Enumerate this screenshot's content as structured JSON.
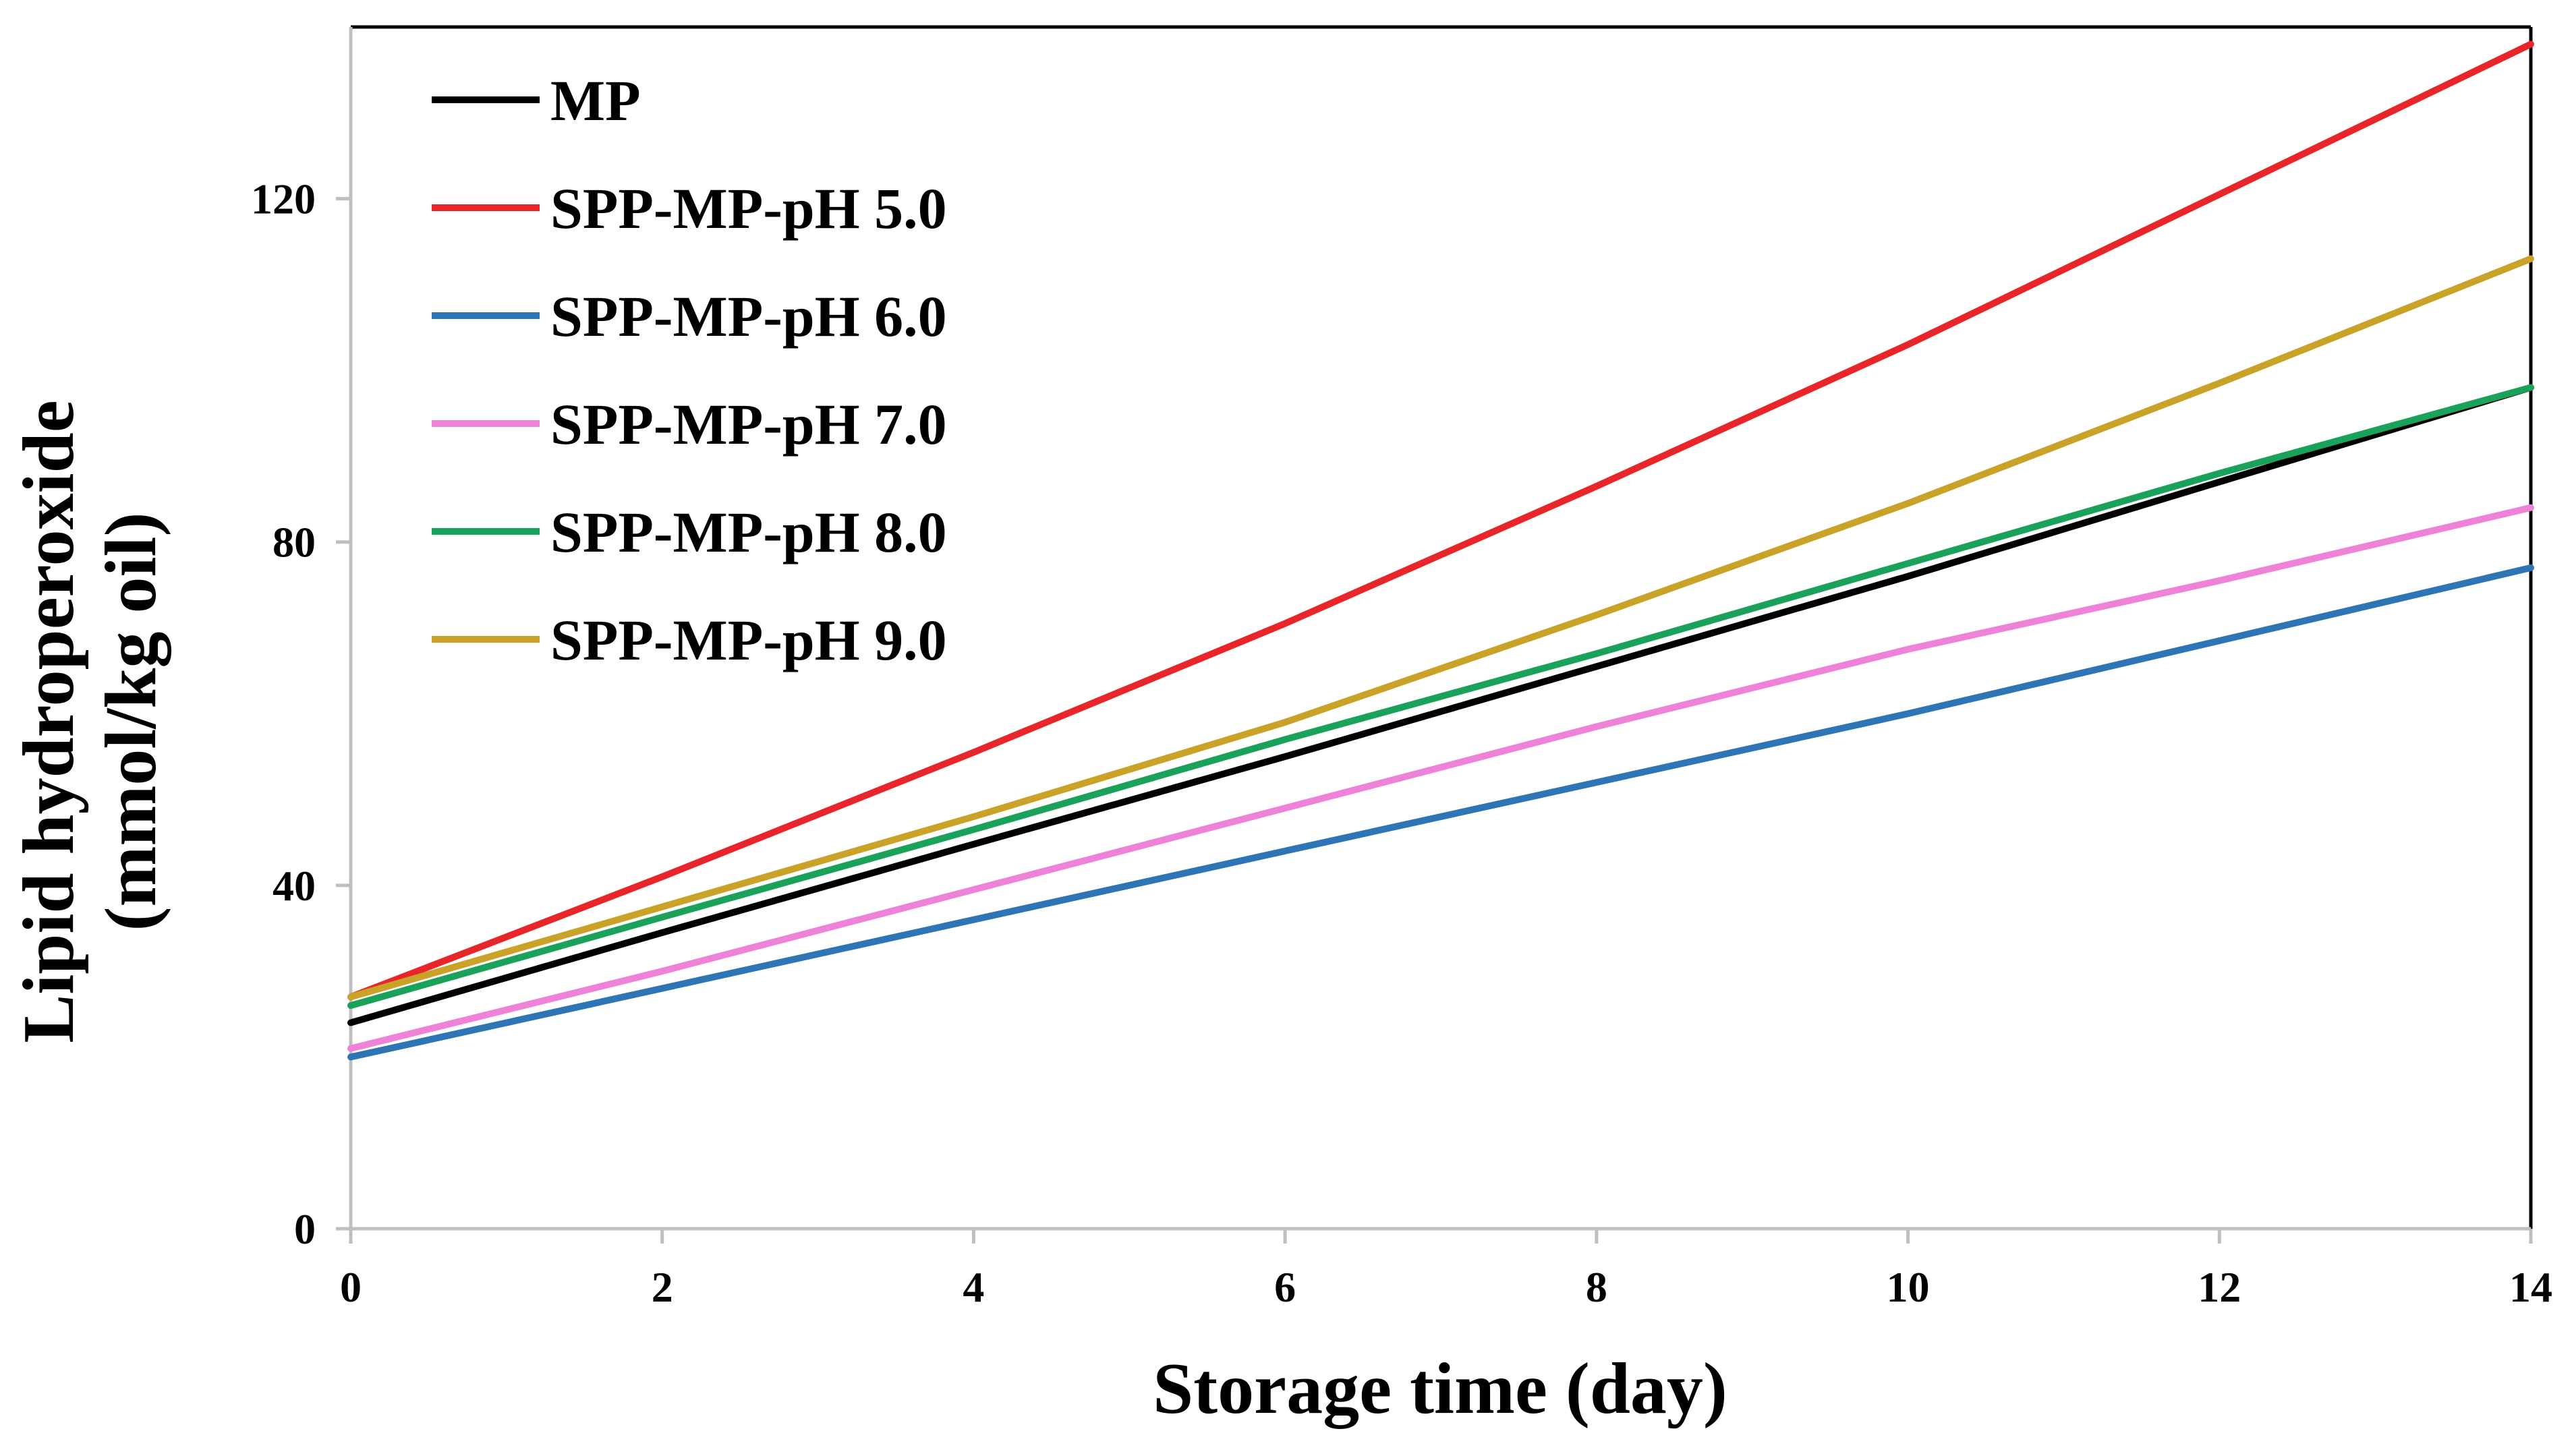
{
  "chart_data": {
    "type": "line",
    "title": "",
    "xlabel": "Storage time (day)",
    "ylabel_line1": "Lipid hydroperoxide",
    "ylabel_line2": "(mmol/kg oil)",
    "xlim": [
      0,
      14
    ],
    "ylim": [
      0,
      140
    ],
    "xticks": [
      0,
      2,
      4,
      6,
      8,
      10,
      12,
      14
    ],
    "yticks": [
      0,
      40,
      80,
      120
    ],
    "grid": false,
    "legend_position": "top-left",
    "x": [
      0,
      2,
      4,
      6,
      8,
      10,
      12,
      14
    ],
    "series": [
      {
        "name": "MP",
        "color": "#000000",
        "values": [
          24,
          34.5,
          44.8,
          55,
          65.5,
          76,
          87,
          98
        ]
      },
      {
        "name": "SPP-MP-pH 5.0",
        "color": "#e8262a",
        "values": [
          27,
          41,
          55.5,
          70.5,
          86.5,
          103,
          120.5,
          138
        ]
      },
      {
        "name": "SPP-MP-pH 6.0",
        "color": "#2e75b6",
        "values": [
          20,
          28,
          36,
          44,
          52,
          60,
          68.5,
          77
        ]
      },
      {
        "name": "SPP-MP-pH 7.0",
        "color": "#ee82d8",
        "values": [
          21,
          30,
          39.5,
          49,
          58.5,
          67.5,
          75.5,
          84
        ]
      },
      {
        "name": "SPP-MP-pH 8.0",
        "color": "#1aa25a",
        "values": [
          26,
          36.3,
          46.5,
          57,
          67,
          77.5,
          88,
          98
        ]
      },
      {
        "name": "SPP-MP-pH 9.0",
        "color": "#c9a227",
        "values": [
          27,
          37.5,
          48,
          59,
          71.5,
          84.5,
          98.5,
          113
        ]
      }
    ]
  }
}
